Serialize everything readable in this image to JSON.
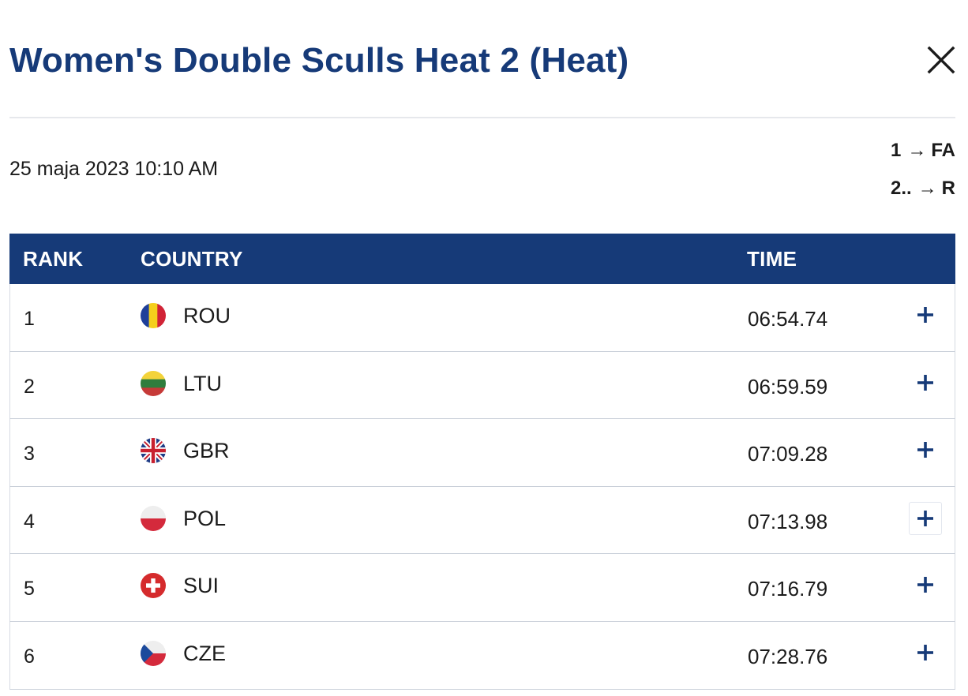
{
  "modal": {
    "title": "Women's Double Sculls Heat 2 (Heat)",
    "date": "25 maja 2023 10:10 AM",
    "progression": [
      {
        "from": "1",
        "arrow": "→",
        "to": "FA"
      },
      {
        "from": "2..",
        "arrow": "→",
        "to": "R"
      }
    ]
  },
  "table": {
    "headers": {
      "rank": "RANK",
      "country": "COUNTRY",
      "time": "TIME"
    },
    "rows": [
      {
        "rank": "1",
        "code": "ROU",
        "time": "06:54.74",
        "flag_icon": "romania-flag-icon"
      },
      {
        "rank": "2",
        "code": "LTU",
        "time": "06:59.59",
        "flag_icon": "lithuania-flag-icon"
      },
      {
        "rank": "3",
        "code": "GBR",
        "time": "07:09.28",
        "flag_icon": "great-britain-flag-icon"
      },
      {
        "rank": "4",
        "code": "POL",
        "time": "07:13.98",
        "flag_icon": "poland-flag-icon"
      },
      {
        "rank": "5",
        "code": "SUI",
        "time": "07:16.79",
        "flag_icon": "switzerland-flag-icon"
      },
      {
        "rank": "6",
        "code": "CZE",
        "time": "07:28.76",
        "flag_icon": "czechia-flag-icon"
      }
    ]
  },
  "colors": {
    "brand_navy": "#163a78",
    "divider": "#e6e8ec",
    "row_border": "#c9cfd9"
  },
  "icons": {
    "close": "close-icon",
    "expand": "plus-icon"
  }
}
